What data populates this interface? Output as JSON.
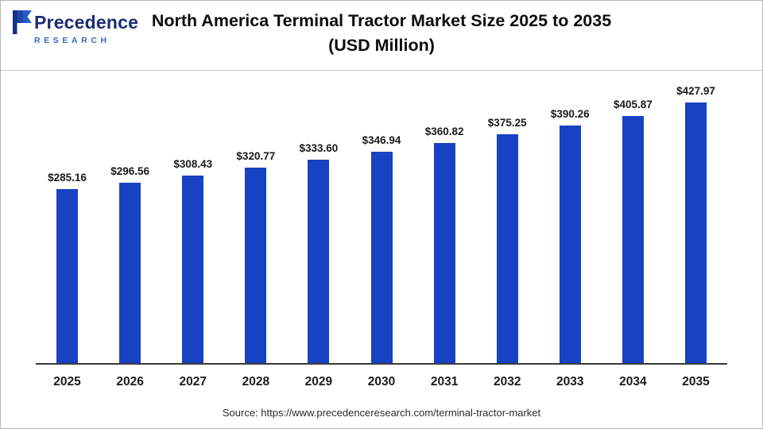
{
  "logo": {
    "brand_top": "Precedence",
    "brand_bottom": "RESEARCH",
    "mark_color_dark": "#16337f",
    "mark_color_light": "#2b5cc4"
  },
  "header": {
    "title_line1": "North America Terminal Tractor Market Size 2025 to 2035",
    "title_line2": "(USD Million)"
  },
  "chart_data": {
    "type": "bar",
    "title": "North America Terminal Tractor Market Size 2025 to 2035 (USD Million)",
    "categories": [
      "2025",
      "2026",
      "2027",
      "2028",
      "2029",
      "2030",
      "2031",
      "2032",
      "2033",
      "2034",
      "2035"
    ],
    "values": [
      285.16,
      296.56,
      308.43,
      320.77,
      333.6,
      346.94,
      360.82,
      375.25,
      390.26,
      405.87,
      427.97
    ],
    "value_labels": [
      "$285.16",
      "$296.56",
      "$308.43",
      "$320.77",
      "$333.60",
      "$346.94",
      "$360.82",
      "$375.25",
      "$390.26",
      "$405.87",
      "$427.97"
    ],
    "xlabel": "",
    "ylabel": "",
    "ylim": [
      0,
      450
    ],
    "bar_color": "#1842c4",
    "grid": false,
    "legend": "none",
    "value_label_prefix": "$"
  },
  "footer": {
    "source": "Source: https://www.precedenceresearch.com/terminal-tractor-market"
  }
}
